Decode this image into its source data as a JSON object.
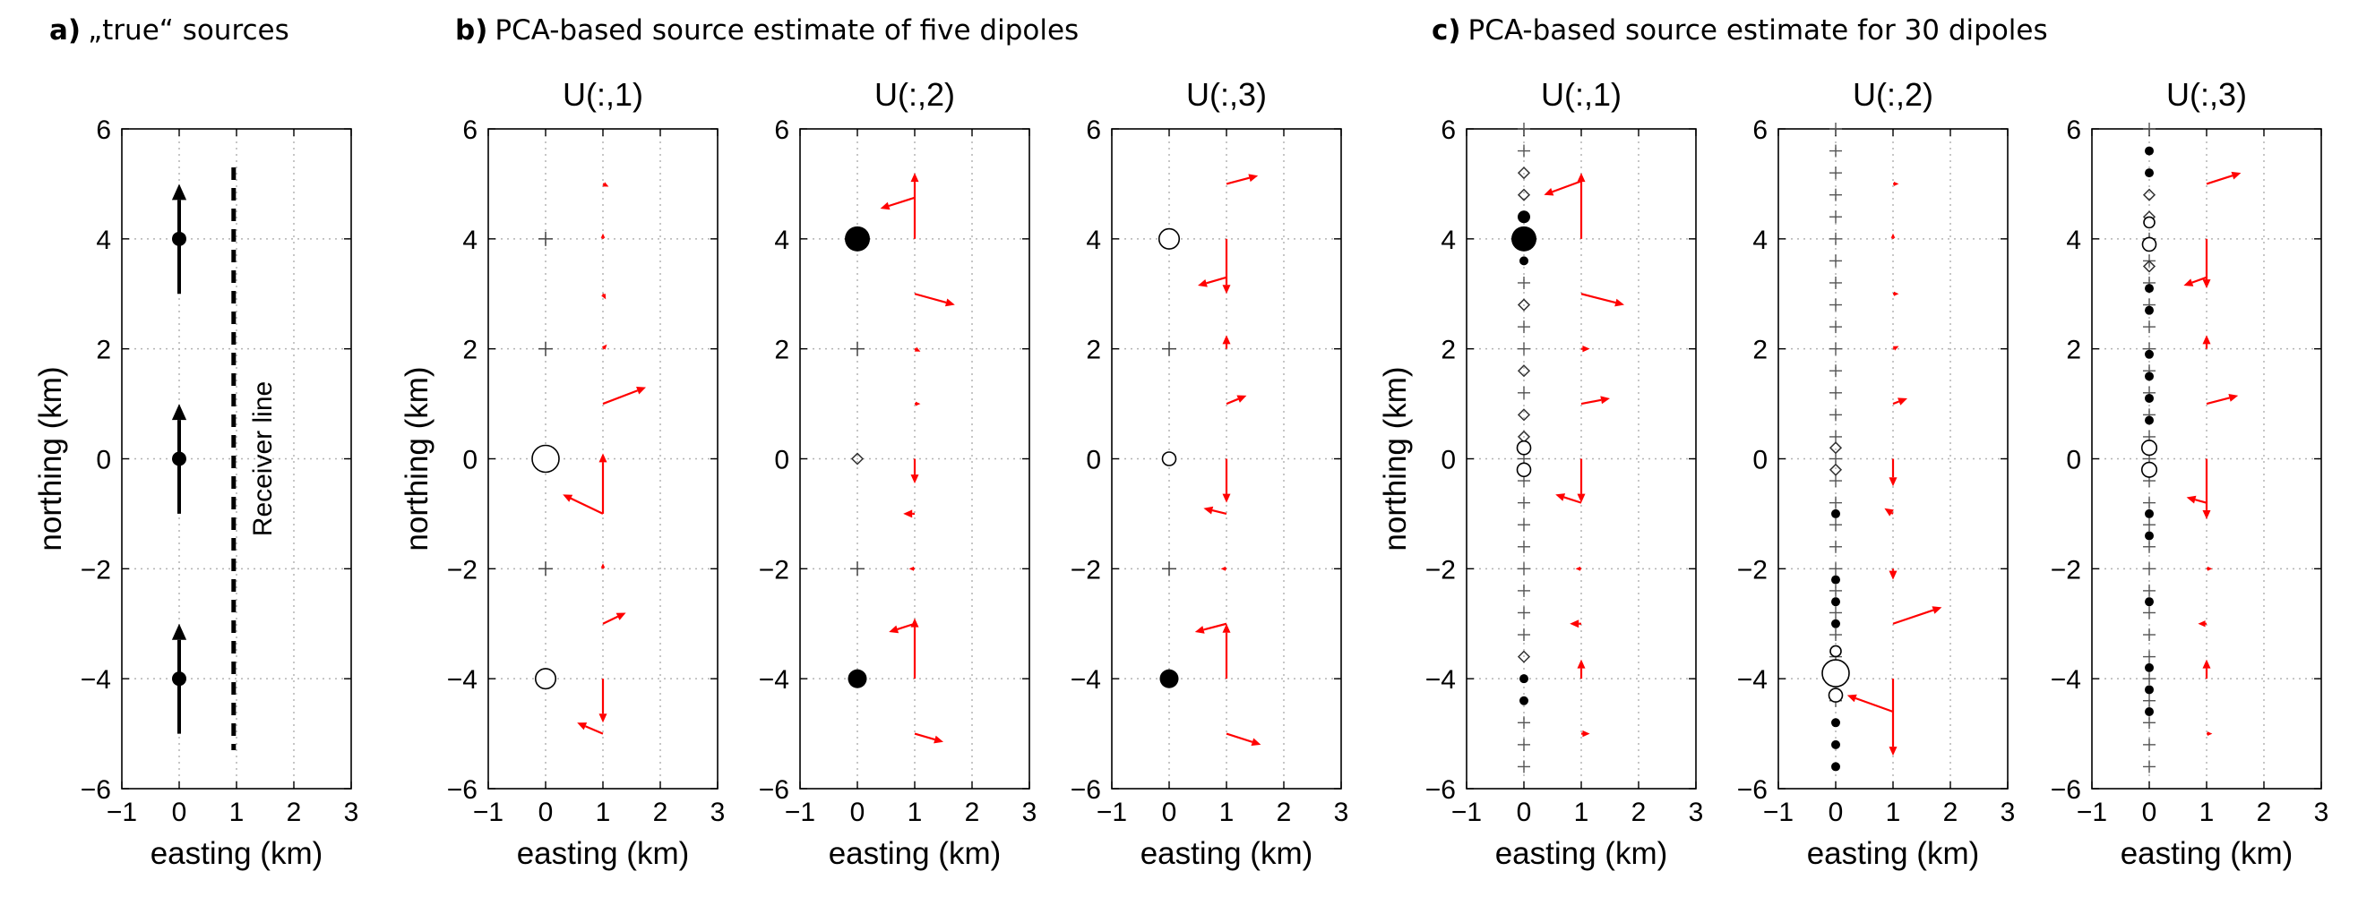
{
  "headings": [
    {
      "letter": "a)",
      "text": "„true“ sources"
    },
    {
      "letter": "b)",
      "text": "PCA-based source estimate of five dipoles"
    },
    {
      "letter": "c)",
      "text": "PCA-based source estimate for 30 dipoles"
    }
  ],
  "colors": {
    "arrow": "#ff0000",
    "marker": "#000000",
    "grid": "#b3b3b3"
  },
  "chart_data": [
    {
      "id": "a",
      "type": "scatter",
      "title": "",
      "xlabel": "easting (km)",
      "ylabel": "northing (km)",
      "xlim": [
        -1,
        3
      ],
      "ylim": [
        -6,
        6
      ],
      "xticks": [
        -1,
        0,
        1,
        2,
        3
      ],
      "yticks": [
        -6,
        -4,
        -2,
        0,
        2,
        4,
        6
      ],
      "grid": true,
      "sources": [
        {
          "x": 0,
          "y": 4,
          "direction": "north",
          "tail": 3,
          "head": 5
        },
        {
          "x": 0,
          "y": 0,
          "direction": "north",
          "tail": -1,
          "head": 1
        },
        {
          "x": 0,
          "y": -4,
          "direction": "north",
          "tail": -5,
          "head": -3
        }
      ],
      "receiver_line": {
        "x": 0.95,
        "y_from": -5.3,
        "y_to": 5.3,
        "label": "Receiver line"
      }
    },
    {
      "id": "b1",
      "type": "scatter",
      "title": "U(:,1)",
      "xlabel": "easting (km)",
      "ylabel": "northing (km)",
      "xlim": [
        -1,
        3
      ],
      "ylim": [
        -6,
        6
      ],
      "xticks": [
        -1,
        0,
        1,
        2,
        3
      ],
      "yticks": [
        -6,
        -4,
        -2,
        0,
        2,
        4,
        6
      ],
      "grid": true,
      "markers": [
        {
          "y": 4,
          "kind": "plus"
        },
        {
          "y": 2,
          "kind": "plus"
        },
        {
          "y": 0,
          "kind": "open",
          "size": 1.0
        },
        {
          "y": -2,
          "kind": "plus"
        },
        {
          "y": -4,
          "kind": "open",
          "size": 0.75
        }
      ],
      "arrows": [
        {
          "y": 5,
          "dx": 0.1,
          "dy": -0.05
        },
        {
          "y": 4,
          "dx": 0,
          "dy": 0.1
        },
        {
          "y": 3,
          "dx": 0.05,
          "dy": -0.1
        },
        {
          "y": 2,
          "dx": 0.07,
          "dy": 0.08
        },
        {
          "y": 1,
          "dx": 0.75,
          "dy": 0.3
        },
        {
          "y": -1,
          "dx": -0.7,
          "dy": 0.35
        },
        {
          "y": -1,
          "dx": 0,
          "dy": 1.1
        },
        {
          "y": -2,
          "dx": 0,
          "dy": 0.1
        },
        {
          "y": -3,
          "dx": 0.4,
          "dy": 0.2
        },
        {
          "y": -4,
          "dx": 0,
          "dy": -0.8
        },
        {
          "y": -5,
          "dx": -0.45,
          "dy": 0.2
        }
      ]
    },
    {
      "id": "b2",
      "type": "scatter",
      "title": "U(:,2)",
      "xlabel": "easting (km)",
      "ylabel": "",
      "xlim": [
        -1,
        3
      ],
      "ylim": [
        -6,
        6
      ],
      "xticks": [
        -1,
        0,
        1,
        2,
        3
      ],
      "yticks": [
        -6,
        -4,
        -2,
        0,
        2,
        4,
        6
      ],
      "grid": true,
      "markers": [
        {
          "y": 4,
          "kind": "filled",
          "size": 1.0
        },
        {
          "y": 2,
          "kind": "plus"
        },
        {
          "y": 0,
          "kind": "diamond"
        },
        {
          "y": -2,
          "kind": "plus"
        },
        {
          "y": -4,
          "kind": "filled",
          "size": 0.75
        }
      ],
      "arrows": [
        {
          "y": 4,
          "dx": 0,
          "dy": 1.2
        },
        {
          "y": 4.75,
          "dx": -0.6,
          "dy": -0.2
        },
        {
          "y": 3,
          "dx": 0.7,
          "dy": -0.2
        },
        {
          "y": 2,
          "dx": 0.1,
          "dy": -0.05
        },
        {
          "y": 1,
          "dx": 0.1,
          "dy": 0
        },
        {
          "y": 0,
          "dx": 0,
          "dy": -0.45
        },
        {
          "y": -1,
          "dx": -0.2,
          "dy": 0
        },
        {
          "y": -2,
          "dx": -0.1,
          "dy": 0
        },
        {
          "y": -3,
          "dx": -0.45,
          "dy": -0.15
        },
        {
          "y": -4,
          "dx": 0,
          "dy": 1.1
        },
        {
          "y": -5,
          "dx": 0.5,
          "dy": -0.15
        }
      ]
    },
    {
      "id": "b3",
      "type": "scatter",
      "title": "U(:,3)",
      "xlabel": "easting (km)",
      "ylabel": "",
      "xlim": [
        -1,
        3
      ],
      "ylim": [
        -6,
        6
      ],
      "xticks": [
        -1,
        0,
        1,
        2,
        3
      ],
      "yticks": [
        -6,
        -4,
        -2,
        0,
        2,
        4,
        6
      ],
      "grid": true,
      "markers": [
        {
          "y": 4,
          "kind": "open",
          "size": 0.75
        },
        {
          "y": 2,
          "kind": "plus"
        },
        {
          "y": 0,
          "kind": "open",
          "size": 0.5
        },
        {
          "y": -2,
          "kind": "plus"
        },
        {
          "y": -4,
          "kind": "filled",
          "size": 0.75
        }
      ],
      "arrows": [
        {
          "y": 5,
          "dx": 0.55,
          "dy": 0.15
        },
        {
          "y": 4,
          "dx": 0,
          "dy": -1.0
        },
        {
          "y": 3.3,
          "dx": -0.5,
          "dy": -0.15
        },
        {
          "y": 2,
          "dx": 0,
          "dy": 0.25
        },
        {
          "y": 1,
          "dx": 0.35,
          "dy": 0.15
        },
        {
          "y": 0,
          "dx": 0,
          "dy": -0.8
        },
        {
          "y": -1,
          "dx": -0.4,
          "dy": 0.1
        },
        {
          "y": -2,
          "dx": -0.1,
          "dy": 0
        },
        {
          "y": -3,
          "dx": -0.55,
          "dy": -0.15
        },
        {
          "y": -4,
          "dx": 0,
          "dy": 1.0
        },
        {
          "y": -5,
          "dx": 0.6,
          "dy": -0.2
        }
      ]
    },
    {
      "id": "c1",
      "type": "scatter",
      "title": "U(:,1)",
      "xlabel": "easting (km)",
      "ylabel": "northing (km)",
      "xlim": [
        -1,
        3
      ],
      "ylim": [
        -6,
        6
      ],
      "xticks": [
        -1,
        0,
        1,
        2,
        3
      ],
      "yticks": [
        -6,
        -4,
        -2,
        0,
        2,
        4,
        6
      ],
      "grid": true,
      "dense_column": {
        "from": -5.6,
        "to": 6,
        "step": 0.4,
        "kind": "plus"
      },
      "markers": [
        {
          "y": 5.2,
          "kind": "diamond"
        },
        {
          "y": 4.8,
          "kind": "diamond"
        },
        {
          "y": 4.4,
          "kind": "filled",
          "size": 0.5
        },
        {
          "y": 4.0,
          "kind": "filled",
          "size": 1.0
        },
        {
          "y": 3.6,
          "kind": "filled",
          "size": 0.3
        },
        {
          "y": 2.8,
          "kind": "diamond"
        },
        {
          "y": 1.6,
          "kind": "diamond"
        },
        {
          "y": 0.8,
          "kind": "diamond"
        },
        {
          "y": 0.4,
          "kind": "diamond"
        },
        {
          "y": 0.2,
          "kind": "open",
          "size": 0.5
        },
        {
          "y": -0.2,
          "kind": "open",
          "size": 0.5
        },
        {
          "y": -3.6,
          "kind": "diamond"
        },
        {
          "y": -4.0,
          "kind": "filled",
          "size": 0.3
        },
        {
          "y": -4.4,
          "kind": "filled",
          "size": 0.3
        }
      ],
      "arrows": [
        {
          "y": 4,
          "dx": 0,
          "dy": 1.2
        },
        {
          "y": 5.05,
          "dx": -0.65,
          "dy": -0.25
        },
        {
          "y": 3,
          "dx": 0.75,
          "dy": -0.2
        },
        {
          "y": 2,
          "dx": 0.15,
          "dy": 0
        },
        {
          "y": 1,
          "dx": 0.5,
          "dy": 0.1
        },
        {
          "y": 0,
          "dx": 0,
          "dy": -0.8
        },
        {
          "y": -0.8,
          "dx": -0.45,
          "dy": 0.15
        },
        {
          "y": -2,
          "dx": -0.1,
          "dy": 0
        },
        {
          "y": -3,
          "dx": -0.2,
          "dy": 0
        },
        {
          "y": -4,
          "dx": 0,
          "dy": 0.35
        },
        {
          "y": -5,
          "dx": 0.15,
          "dy": 0
        }
      ]
    },
    {
      "id": "c2",
      "type": "scatter",
      "title": "U(:,2)",
      "xlabel": "easting (km)",
      "ylabel": "",
      "xlim": [
        -1,
        3
      ],
      "ylim": [
        -6,
        6
      ],
      "xticks": [
        -1,
        0,
        1,
        2,
        3
      ],
      "yticks": [
        -6,
        -4,
        -2,
        0,
        2,
        4,
        6
      ],
      "grid": true,
      "dense_column": {
        "from": -5.6,
        "to": 6,
        "step": 0.4,
        "kind": "plus"
      },
      "markers": [
        {
          "y": 0.2,
          "kind": "diamond"
        },
        {
          "y": -0.2,
          "kind": "diamond"
        },
        {
          "y": -1.0,
          "kind": "filled",
          "size": 0.3
        },
        {
          "y": -2.2,
          "kind": "filled",
          "size": 0.3
        },
        {
          "y": -2.6,
          "kind": "filled",
          "size": 0.3
        },
        {
          "y": -3.0,
          "kind": "filled",
          "size": 0.3
        },
        {
          "y": -3.5,
          "kind": "open",
          "size": 0.35
        },
        {
          "y": -3.9,
          "kind": "open",
          "size": 1.0
        },
        {
          "y": -4.3,
          "kind": "open",
          "size": 0.5
        },
        {
          "y": -4.8,
          "kind": "filled",
          "size": 0.3
        },
        {
          "y": -5.2,
          "kind": "filled",
          "size": 0.3
        },
        {
          "y": -5.6,
          "kind": "filled",
          "size": 0.3
        }
      ],
      "arrows": [
        {
          "y": 5,
          "dx": 0.1,
          "dy": 0
        },
        {
          "y": 4,
          "dx": 0,
          "dy": 0.1
        },
        {
          "y": 3,
          "dx": 0.1,
          "dy": 0
        },
        {
          "y": 2,
          "dx": 0.1,
          "dy": 0.05
        },
        {
          "y": 1,
          "dx": 0.25,
          "dy": 0.1
        },
        {
          "y": 0,
          "dx": 0,
          "dy": -0.5
        },
        {
          "y": -1,
          "dx": -0.15,
          "dy": 0.1
        },
        {
          "y": -2,
          "dx": 0,
          "dy": -0.2
        },
        {
          "y": -3,
          "dx": 0.85,
          "dy": 0.3
        },
        {
          "y": -4,
          "dx": 0,
          "dy": -1.4
        },
        {
          "y": -4.6,
          "dx": -0.8,
          "dy": 0.3
        }
      ]
    },
    {
      "id": "c3",
      "type": "scatter",
      "title": "U(:,3)",
      "xlabel": "easting (km)",
      "ylabel": "",
      "xlim": [
        -1,
        3
      ],
      "ylim": [
        -6,
        6
      ],
      "xticks": [
        -1,
        0,
        1,
        2,
        3
      ],
      "yticks": [
        -6,
        -4,
        -2,
        0,
        2,
        4,
        6
      ],
      "grid": true,
      "dense_column": {
        "from": -5.6,
        "to": 6,
        "step": 0.4,
        "kind": "plus"
      },
      "markers": [
        {
          "y": 5.6,
          "kind": "filled",
          "size": 0.3
        },
        {
          "y": 5.2,
          "kind": "filled",
          "size": 0.3
        },
        {
          "y": 4.8,
          "kind": "diamond"
        },
        {
          "y": 4.4,
          "kind": "diamond"
        },
        {
          "y": 4.3,
          "kind": "open",
          "size": 0.3
        },
        {
          "y": 3.9,
          "kind": "open",
          "size": 0.5
        },
        {
          "y": 3.5,
          "kind": "diamond"
        },
        {
          "y": 3.1,
          "kind": "filled",
          "size": 0.3
        },
        {
          "y": 2.7,
          "kind": "filled",
          "size": 0.3
        },
        {
          "y": 1.9,
          "kind": "filled",
          "size": 0.3
        },
        {
          "y": 1.5,
          "kind": "filled",
          "size": 0.3
        },
        {
          "y": 1.1,
          "kind": "filled",
          "size": 0.3
        },
        {
          "y": 0.7,
          "kind": "filled",
          "size": 0.3
        },
        {
          "y": 0.2,
          "kind": "open",
          "size": 0.55
        },
        {
          "y": -0.2,
          "kind": "open",
          "size": 0.55
        },
        {
          "y": -1.0,
          "kind": "filled",
          "size": 0.3
        },
        {
          "y": -1.4,
          "kind": "filled",
          "size": 0.3
        },
        {
          "y": -2.6,
          "kind": "filled",
          "size": 0.3
        },
        {
          "y": -3.8,
          "kind": "filled",
          "size": 0.3
        },
        {
          "y": -4.2,
          "kind": "filled",
          "size": 0.3
        },
        {
          "y": -4.6,
          "kind": "filled",
          "size": 0.3
        }
      ],
      "arrows": [
        {
          "y": 5,
          "dx": 0.6,
          "dy": 0.2
        },
        {
          "y": 4,
          "dx": 0,
          "dy": -0.9
        },
        {
          "y": 3.3,
          "dx": -0.4,
          "dy": -0.15
        },
        {
          "y": 2,
          "dx": 0,
          "dy": 0.25
        },
        {
          "y": 1,
          "dx": 0.55,
          "dy": 0.15
        },
        {
          "y": 0,
          "dx": 0,
          "dy": -1.1
        },
        {
          "y": -0.8,
          "dx": -0.35,
          "dy": 0.1
        },
        {
          "y": -2,
          "dx": 0.1,
          "dy": 0
        },
        {
          "y": -3,
          "dx": -0.15,
          "dy": 0
        },
        {
          "y": -4,
          "dx": 0,
          "dy": 0.35
        },
        {
          "y": -5,
          "dx": 0.1,
          "dy": 0
        }
      ]
    }
  ]
}
